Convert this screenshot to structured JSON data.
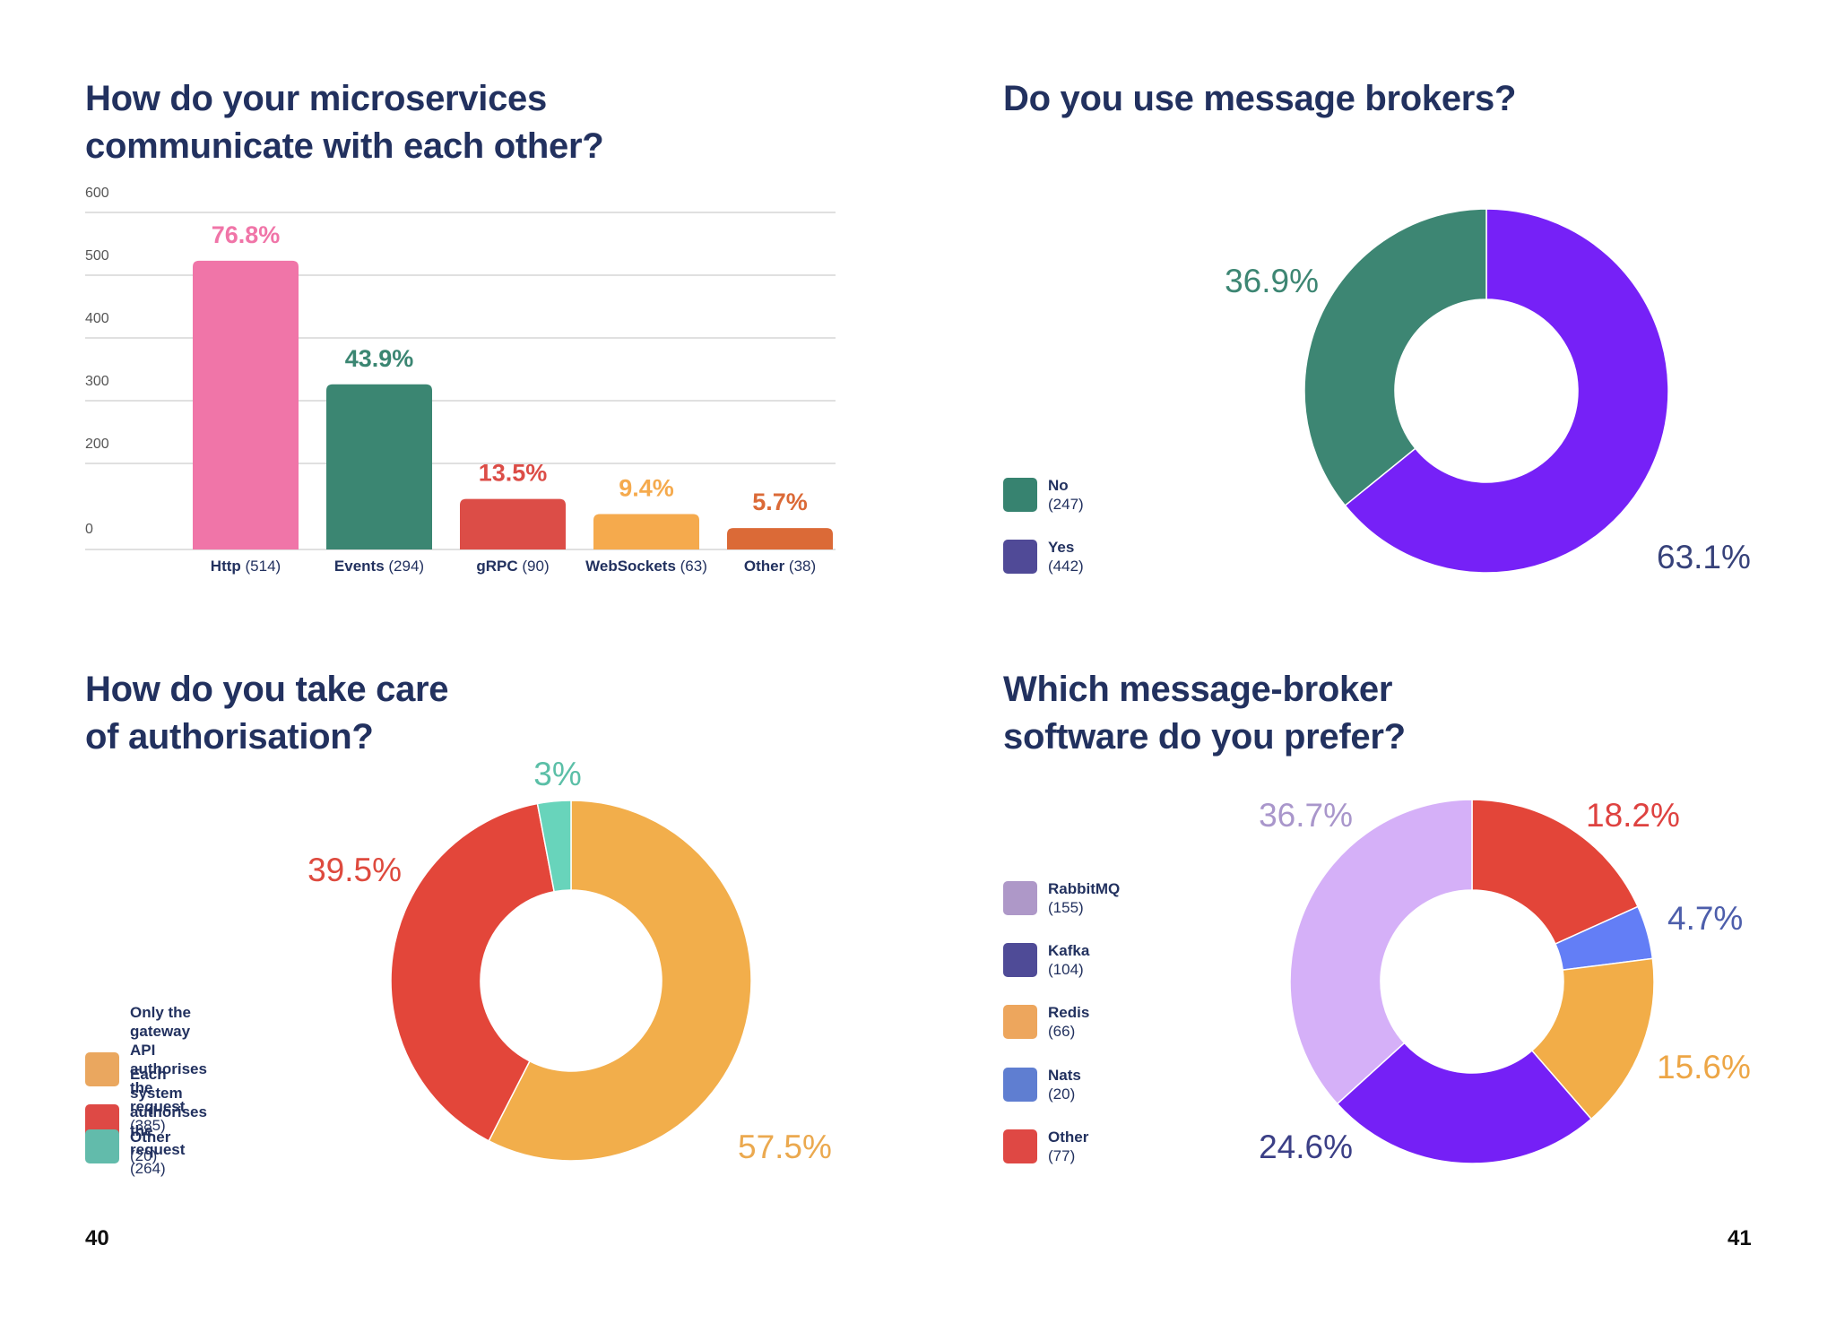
{
  "page_numbers": {
    "left": "40",
    "right": "41"
  },
  "chart_data": [
    {
      "id": "communication",
      "type": "bar",
      "title": "How do your microservices communicate with each other?",
      "title_lines": [
        "How do your microservices",
        "communicate with each other?"
      ],
      "yticks": [
        "600",
        "500",
        "400",
        "300",
        "200",
        "0"
      ],
      "ylim": [
        0,
        600
      ],
      "grid": true,
      "categories": [
        "Http",
        "Events",
        "gRPC",
        "WebSockets",
        "Other"
      ],
      "counts": [
        "(514)",
        "(294)",
        "(90)",
        "(63)",
        "(38)"
      ],
      "values": [
        514,
        294,
        90,
        63,
        38
      ],
      "percent_labels": [
        "76.8%",
        "43.9%",
        "13.5%",
        "9.4%",
        "5.7%"
      ],
      "colors": [
        "#f075a8",
        "#3b8672",
        "#dc4d47",
        "#f5aa4d",
        "#db6a37"
      ]
    },
    {
      "id": "brokers-use",
      "type": "pie",
      "title": "Do you use message brokers?",
      "title_lines": [
        "Do you use message brokers?"
      ],
      "legend_position": "left",
      "slices": [
        {
          "label": "Yes",
          "count": "(442)",
          "value": 442,
          "percent": "63.1%",
          "color": "#7621f7",
          "legend_color": "#504a97",
          "label_color": "#37427a"
        },
        {
          "label": "No",
          "count": "(247)",
          "value": 247,
          "percent": "36.9%",
          "color": "#3d8673",
          "legend_color": "#378370",
          "label_color": "#3d8673"
        }
      ],
      "legend_order": [
        1,
        0
      ]
    },
    {
      "id": "authorisation",
      "type": "pie",
      "title": "How do you take care of authorisation?",
      "title_lines": [
        "How do you take care",
        "of authorisation?"
      ],
      "legend_position": "left",
      "slices": [
        {
          "label": "Only the gateway API authorises the request",
          "label_lines": [
            "Only the gateway API",
            "authorises the request"
          ],
          "count": "(385)",
          "value": 385,
          "percent": "57.5%",
          "color": "#f2ae4b",
          "legend_color": "#eaa75f",
          "label_color": "#eba94f"
        },
        {
          "label": "Each system authorises the request",
          "label_lines": [
            "Each system authorises",
            "the request"
          ],
          "count": "(264)",
          "value": 264,
          "percent": "39.5%",
          "color": "#e3463a",
          "legend_color": "#de4945",
          "label_color": "#de4a3e"
        },
        {
          "label": "Other",
          "label_lines": [
            "Other"
          ],
          "count": "(20)",
          "value": 20,
          "percent": "3%",
          "color": "#68d4bb",
          "legend_color": "#62bbab",
          "label_color": "#5bbfa7"
        }
      ],
      "legend_order": [
        0,
        1,
        2
      ]
    },
    {
      "id": "broker-software",
      "type": "pie",
      "title": "Which message-broker software do you prefer?",
      "title_lines": [
        "Which message-broker",
        "software do you prefer?"
      ],
      "legend_position": "left",
      "legend": [
        {
          "label": "RabbitMQ",
          "count": "(155)",
          "color": "#ae98c8"
        },
        {
          "label": "Kafka",
          "count": "(104)",
          "color": "#4f4b97"
        },
        {
          "label": "Redis",
          "count": "(66)",
          "color": "#eda65d"
        },
        {
          "label": "Nats",
          "count": "(20)",
          "color": "#5f7ed1"
        },
        {
          "label": "Other",
          "count": "(77)",
          "color": "#df4844"
        }
      ],
      "slices": [
        {
          "label": "Other",
          "value": 77,
          "percent": "18.2%",
          "color": "#e34539",
          "label_color": "#de4240"
        },
        {
          "label": "Nats",
          "value": 20,
          "percent": "4.7%",
          "color": "#637ef6",
          "label_color": "#4d5eab"
        },
        {
          "label": "Redis",
          "value": 66,
          "percent": "15.6%",
          "color": "#f2ad48",
          "label_color": "#eda646"
        },
        {
          "label": "Kafka",
          "value": 104,
          "percent": "24.6%",
          "color": "#7520f6",
          "label_color": "#3b3f86"
        },
        {
          "label": "RabbitMQ",
          "value": 155,
          "percent": "36.7%",
          "color": "#d5b0f8",
          "label_color": "#a996cb"
        }
      ]
    }
  ]
}
